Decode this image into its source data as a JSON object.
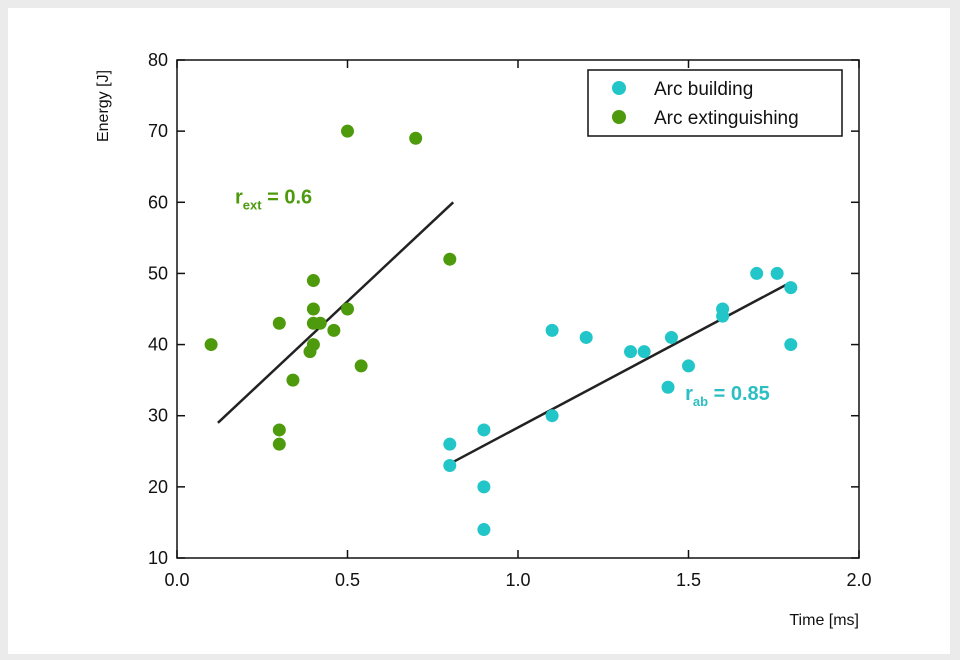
{
  "chart_data": {
    "type": "scatter",
    "xlabel": "Time [ms]",
    "ylabel": "Energy [J]",
    "xlim": [
      0.0,
      2.0
    ],
    "ylim": [
      10,
      80
    ],
    "x_ticks": [
      "0.0",
      "0.5",
      "1.0",
      "1.5",
      "2.0"
    ],
    "x_tick_values": [
      0.0,
      0.5,
      1.0,
      1.5,
      2.0
    ],
    "y_ticks": [
      "10",
      "20",
      "30",
      "40",
      "50",
      "60",
      "70",
      "80"
    ],
    "y_tick_values": [
      10,
      20,
      30,
      40,
      50,
      60,
      70,
      80
    ],
    "grid": false,
    "legend_position": "top-right",
    "series": [
      {
        "name": "Arc building",
        "color": "#22c5c8",
        "points": [
          [
            0.8,
            26
          ],
          [
            0.8,
            23
          ],
          [
            0.9,
            28
          ],
          [
            0.9,
            20
          ],
          [
            0.9,
            14
          ],
          [
            1.1,
            42
          ],
          [
            1.1,
            30
          ],
          [
            1.2,
            41
          ],
          [
            1.33,
            39
          ],
          [
            1.37,
            39
          ],
          [
            1.44,
            34
          ],
          [
            1.45,
            41
          ],
          [
            1.5,
            37
          ],
          [
            1.6,
            45
          ],
          [
            1.6,
            44
          ],
          [
            1.7,
            50
          ],
          [
            1.76,
            50
          ],
          [
            1.8,
            48
          ],
          [
            1.8,
            40
          ]
        ],
        "fit_line": [
          [
            0.81,
            23.5
          ],
          [
            1.79,
            48.5
          ]
        ],
        "fit_color": "#222222"
      },
      {
        "name": "Arc extinguishing",
        "color": "#4e9a0d",
        "points": [
          [
            0.1,
            40
          ],
          [
            0.3,
            43
          ],
          [
            0.3,
            28
          ],
          [
            0.3,
            26
          ],
          [
            0.34,
            35
          ],
          [
            0.39,
            39
          ],
          [
            0.4,
            49
          ],
          [
            0.4,
            45
          ],
          [
            0.4,
            43
          ],
          [
            0.4,
            40
          ],
          [
            0.42,
            43
          ],
          [
            0.46,
            42
          ],
          [
            0.5,
            45
          ],
          [
            0.5,
            70
          ],
          [
            0.54,
            37
          ],
          [
            0.7,
            69
          ],
          [
            0.8,
            52
          ]
        ],
        "fit_line": [
          [
            0.12,
            29
          ],
          [
            0.81,
            60
          ]
        ],
        "fit_color": "#222222"
      }
    ],
    "annotations": [
      {
        "main": "r",
        "sub": "ext",
        "rest": " = 0.6",
        "x": 0.17,
        "y": 59.8,
        "color": "#4e9a0d"
      },
      {
        "main": "r",
        "sub": "ab",
        "rest": " = 0.85",
        "x": 1.49,
        "y": 32.2,
        "color": "#2bbec3"
      }
    ]
  }
}
